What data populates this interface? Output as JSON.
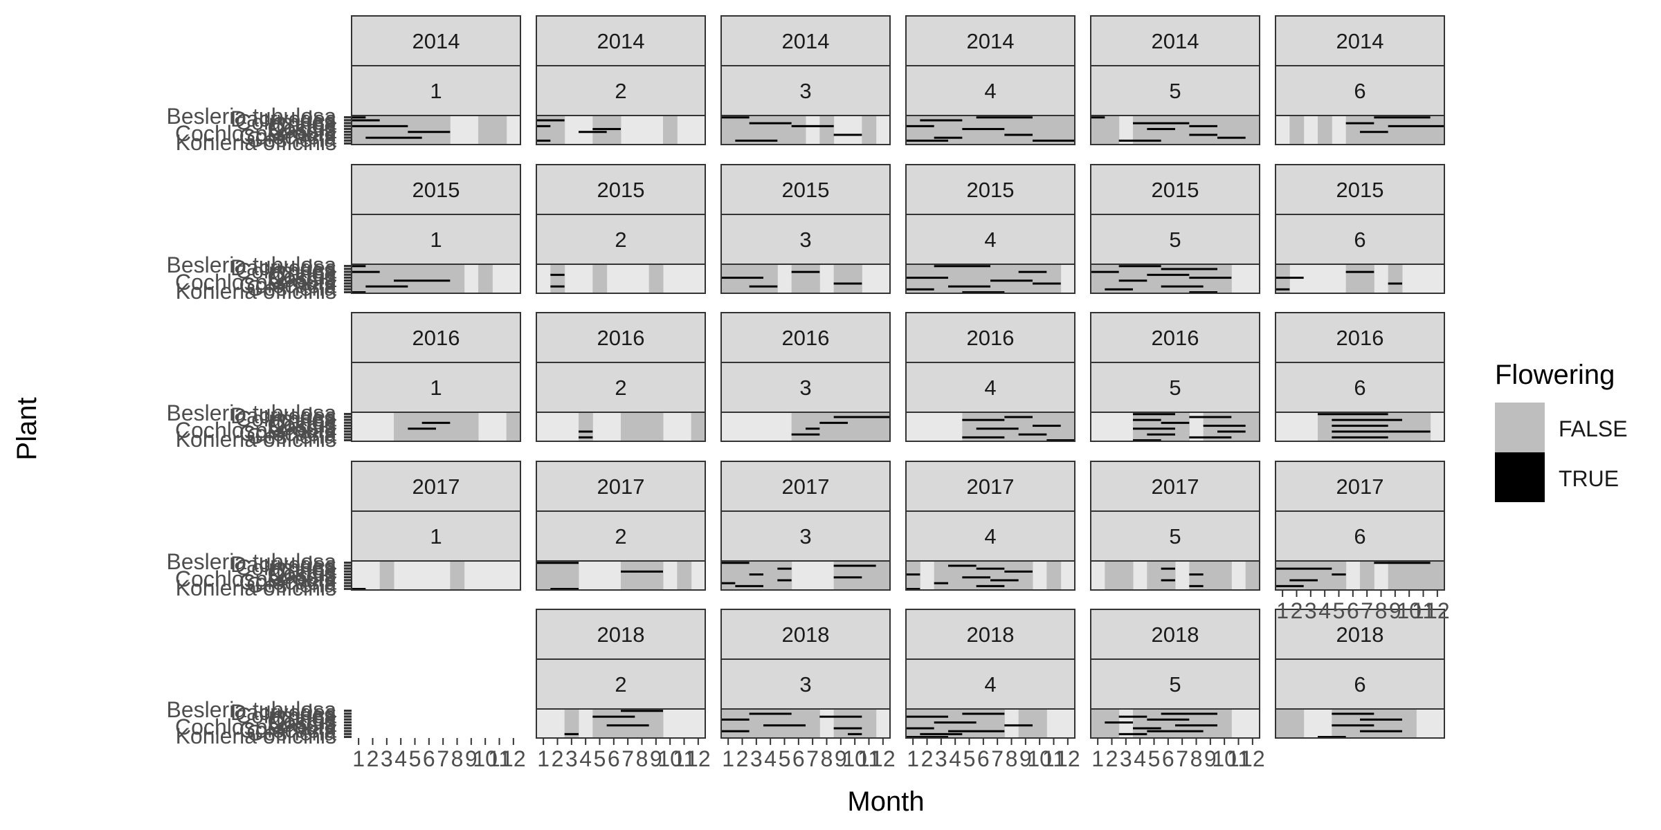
{
  "chart_data": {
    "type": "heatmap",
    "xlabel": "Month",
    "ylabel": "Plant",
    "x_tick_labels": [
      "1",
      "2",
      "3",
      "4",
      "5",
      "6",
      "7",
      "8",
      "9",
      "10",
      "11",
      "12"
    ],
    "plant_tick_labels": [
      "Kohleria officinis",
      "Gesneria",
      "Colocasia",
      "Cochlospermum",
      "Cassia",
      "Costus",
      "Coffea",
      "Columnea",
      "Dacryodes",
      "Besleria tubulosa"
    ],
    "legend": {
      "title": "Flowering",
      "placement": "right",
      "items": [
        {
          "label": "FALSE",
          "color": "#bebebe"
        },
        {
          "label": "TRUE",
          "color": "#000000"
        }
      ]
    },
    "empty_color": "#e8e8e8",
    "panels": [
      {
        "year": "2014",
        "group": "1",
        "gray_months": [
          1,
          2,
          3,
          4,
          5,
          6,
          7,
          10,
          11
        ],
        "flowering": [
          [
            0,
            1,
            1
          ],
          [
            1,
            1,
            2
          ],
          [
            3,
            1,
            4
          ],
          [
            5,
            5,
            7
          ],
          [
            7,
            2,
            5
          ]
        ]
      },
      {
        "year": "2014",
        "group": "2",
        "gray_months": [
          1,
          2,
          5,
          6,
          10
        ],
        "flowering": [
          [
            1,
            1,
            2
          ],
          [
            3,
            1,
            1
          ],
          [
            4,
            5,
            6
          ],
          [
            5,
            4,
            5
          ],
          [
            8,
            1,
            1
          ]
        ]
      },
      {
        "year": "2014",
        "group": "3",
        "gray_months": [
          1,
          2,
          3,
          4,
          5,
          6,
          8,
          11
        ],
        "flowering": [
          [
            0,
            1,
            2
          ],
          [
            2,
            3,
            5
          ],
          [
            3,
            6,
            8
          ],
          [
            6,
            9,
            10
          ],
          [
            8,
            2,
            4
          ]
        ]
      },
      {
        "year": "2014",
        "group": "4",
        "gray_months": [
          1,
          2,
          3,
          4,
          5,
          6,
          7,
          8,
          9,
          10,
          11,
          12
        ],
        "flowering": [
          [
            0,
            6,
            9
          ],
          [
            1,
            2,
            4
          ],
          [
            3,
            1,
            2
          ],
          [
            4,
            5,
            7
          ],
          [
            6,
            8,
            9
          ],
          [
            7,
            3,
            4
          ],
          [
            8,
            1,
            3
          ],
          [
            8,
            10,
            12
          ]
        ]
      },
      {
        "year": "2014",
        "group": "5",
        "gray_months": [
          1,
          2,
          4,
          5,
          6,
          7,
          8,
          9,
          10,
          11,
          12
        ],
        "flowering": [
          [
            0,
            1,
            1
          ],
          [
            2,
            4,
            7
          ],
          [
            3,
            8,
            9
          ],
          [
            4,
            5,
            6
          ],
          [
            6,
            8,
            9
          ],
          [
            7,
            10,
            11
          ],
          [
            8,
            3,
            5
          ]
        ]
      },
      {
        "year": "2014",
        "group": "6",
        "gray_months": [
          2,
          4,
          6,
          7,
          8,
          9,
          10,
          11,
          12
        ],
        "flowering": [
          [
            0,
            8,
            11
          ],
          [
            2,
            6,
            7
          ],
          [
            3,
            9,
            12
          ],
          [
            5,
            7,
            8
          ]
        ]
      },
      {
        "year": "2015",
        "group": "1",
        "gray_months": [
          1,
          2,
          3,
          4,
          5,
          6,
          7,
          8,
          10
        ],
        "flowering": [
          [
            0,
            1,
            1
          ],
          [
            2,
            1,
            2
          ],
          [
            5,
            4,
            7
          ],
          [
            7,
            2,
            4
          ],
          [
            9,
            1,
            1
          ]
        ]
      },
      {
        "year": "2015",
        "group": "2",
        "gray_months": [
          2,
          5,
          9
        ],
        "flowering": [
          [
            3,
            2,
            2
          ],
          [
            7,
            2,
            2
          ]
        ]
      },
      {
        "year": "2015",
        "group": "3",
        "gray_months": [
          1,
          2,
          3,
          4,
          6,
          7,
          9,
          10
        ],
        "flowering": [
          [
            2,
            6,
            7
          ],
          [
            4,
            1,
            3
          ],
          [
            6,
            9,
            10
          ],
          [
            7,
            3,
            4
          ]
        ]
      },
      {
        "year": "2015",
        "group": "4",
        "gray_months": [
          1,
          2,
          3,
          4,
          5,
          6,
          7,
          8,
          9,
          10,
          11
        ],
        "flowering": [
          [
            0,
            3,
            6
          ],
          [
            2,
            9,
            10
          ],
          [
            4,
            1,
            3
          ],
          [
            5,
            7,
            9
          ],
          [
            6,
            10,
            11
          ],
          [
            7,
            4,
            6
          ],
          [
            8,
            1,
            2
          ],
          [
            9,
            5,
            7
          ]
        ]
      },
      {
        "year": "2015",
        "group": "5",
        "gray_months": [
          1,
          2,
          3,
          4,
          5,
          6,
          7,
          8,
          9,
          10
        ],
        "flowering": [
          [
            0,
            3,
            5
          ],
          [
            1,
            6,
            9
          ],
          [
            2,
            1,
            2
          ],
          [
            3,
            5,
            7
          ],
          [
            4,
            8,
            10
          ],
          [
            5,
            3,
            4
          ],
          [
            7,
            6,
            8
          ],
          [
            8,
            2,
            3
          ],
          [
            9,
            8,
            9
          ]
        ]
      },
      {
        "year": "2015",
        "group": "6",
        "gray_months": [
          1,
          6,
          7,
          9
        ],
        "flowering": [
          [
            2,
            6,
            7
          ],
          [
            4,
            1,
            2
          ],
          [
            6,
            9,
            9
          ],
          [
            8,
            1,
            1
          ]
        ]
      }
    ],
    "panels_more": [
      {
        "year": "2016",
        "group": "1",
        "gray_months": [
          4,
          5,
          6,
          7,
          8,
          9,
          12
        ],
        "flowering": [
          [
            3,
            6,
            7
          ],
          [
            5,
            5,
            6
          ]
        ]
      },
      {
        "year": "2016",
        "group": "2",
        "gray_months": [
          4,
          7,
          8,
          9,
          12
        ],
        "flowering": [
          [
            6,
            4,
            4
          ],
          [
            8,
            4,
            4
          ]
        ]
      },
      {
        "year": "2016",
        "group": "3",
        "gray_months": [
          6,
          7,
          8,
          9,
          10,
          11,
          12
        ],
        "flowering": [
          [
            1,
            9,
            12
          ],
          [
            3,
            8,
            9
          ],
          [
            5,
            7,
            7
          ],
          [
            7,
            6,
            7
          ]
        ]
      },
      {
        "year": "2016",
        "group": "4",
        "gray_months": [
          5,
          6,
          7,
          8,
          9,
          10,
          11,
          12
        ],
        "flowering": [
          [
            1,
            8,
            9
          ],
          [
            2,
            5,
            7
          ],
          [
            4,
            10,
            11
          ],
          [
            5,
            6,
            8
          ],
          [
            7,
            9,
            10
          ],
          [
            8,
            5,
            7
          ],
          [
            9,
            11,
            12
          ]
        ]
      },
      {
        "year": "2016",
        "group": "5",
        "gray_months": [
          4,
          5,
          6,
          7,
          9,
          10,
          11,
          12
        ],
        "flowering": [
          [
            0,
            4,
            6
          ],
          [
            1,
            8,
            10
          ],
          [
            2,
            4,
            5
          ],
          [
            3,
            6,
            7
          ],
          [
            4,
            9,
            11
          ],
          [
            5,
            4,
            6
          ],
          [
            6,
            10,
            11
          ],
          [
            7,
            5,
            6
          ],
          [
            8,
            8,
            10
          ],
          [
            9,
            4,
            5
          ]
        ]
      },
      {
        "year": "2016",
        "group": "6",
        "gray_months": [
          4,
          5,
          6,
          7,
          8,
          9,
          10,
          11
        ],
        "flowering": [
          [
            0,
            4,
            8
          ],
          [
            2,
            5,
            9
          ],
          [
            4,
            5,
            8
          ],
          [
            6,
            5,
            11
          ],
          [
            8,
            5,
            8
          ]
        ]
      },
      {
        "year": "2017",
        "group": "1",
        "gray_months": [
          3,
          8
        ],
        "flowering": [
          [
            9,
            1,
            1
          ]
        ]
      },
      {
        "year": "2017",
        "group": "2",
        "gray_months": [
          1,
          2,
          3,
          7,
          8,
          9,
          11
        ],
        "flowering": [
          [
            0,
            1,
            3
          ],
          [
            3,
            7,
            9
          ],
          [
            9,
            2,
            3
          ]
        ]
      },
      {
        "year": "2017",
        "group": "3",
        "gray_months": [
          1,
          2,
          3,
          4,
          5,
          9,
          10,
          11,
          12
        ],
        "flowering": [
          [
            0,
            1,
            2
          ],
          [
            1,
            9,
            11
          ],
          [
            2,
            5,
            5
          ],
          [
            4,
            3,
            3
          ],
          [
            5,
            9,
            10
          ],
          [
            6,
            5,
            5
          ],
          [
            7,
            1,
            1
          ],
          [
            8,
            2,
            3
          ]
        ]
      },
      {
        "year": "2017",
        "group": "4",
        "gray_months": [
          1,
          3,
          4,
          5,
          6,
          7,
          8,
          9,
          11
        ],
        "flowering": [
          [
            1,
            4,
            5
          ],
          [
            2,
            6,
            7
          ],
          [
            3,
            8,
            9
          ],
          [
            4,
            1,
            1
          ],
          [
            5,
            5,
            6
          ],
          [
            6,
            7,
            8
          ],
          [
            7,
            3,
            3
          ],
          [
            8,
            6,
            7
          ],
          [
            9,
            1,
            1
          ]
        ]
      },
      {
        "year": "2017",
        "group": "5",
        "gray_months": [
          2,
          3,
          5,
          6,
          8,
          9,
          10,
          12
        ],
        "flowering": [
          [
            2,
            6,
            6
          ],
          [
            4,
            8,
            8
          ],
          [
            6,
            6,
            6
          ],
          [
            8,
            8,
            8
          ]
        ]
      },
      {
        "year": "2017",
        "group": "6",
        "gray_months": [
          1,
          2,
          3,
          4,
          5,
          7,
          9,
          10,
          11,
          12
        ],
        "flowering": [
          [
            0,
            8,
            11
          ],
          [
            2,
            1,
            4
          ],
          [
            4,
            5,
            5
          ],
          [
            6,
            2,
            3
          ],
          [
            8,
            1,
            2
          ]
        ]
      },
      {
        "year": "2018",
        "group": "2",
        "gray_months": [
          3,
          5,
          6,
          7,
          8,
          9
        ],
        "flowering": [
          [
            0,
            7,
            9
          ],
          [
            2,
            5,
            7
          ],
          [
            5,
            6,
            8
          ],
          [
            8,
            3,
            3
          ]
        ]
      },
      {
        "year": "2018",
        "group": "3",
        "gray_months": [
          1,
          2,
          3,
          4,
          5,
          6,
          7,
          9,
          10,
          11
        ],
        "flowering": [
          [
            1,
            3,
            5
          ],
          [
            2,
            8,
            10
          ],
          [
            3,
            1,
            2
          ],
          [
            5,
            4,
            6
          ],
          [
            6,
            9,
            10
          ],
          [
            7,
            1,
            2
          ],
          [
            8,
            10,
            10
          ]
        ]
      },
      {
        "year": "2018",
        "group": "4",
        "gray_months": [
          1,
          2,
          3,
          4,
          5,
          6,
          7,
          9,
          10
        ],
        "flowering": [
          [
            1,
            5,
            7
          ],
          [
            2,
            1,
            3
          ],
          [
            4,
            3,
            5
          ],
          [
            5,
            8,
            9
          ],
          [
            6,
            1,
            2
          ],
          [
            7,
            4,
            7
          ],
          [
            8,
            2,
            4
          ],
          [
            9,
            1,
            3
          ]
        ]
      },
      {
        "year": "2018",
        "group": "5",
        "gray_months": [
          1,
          2,
          4,
          5,
          6,
          7,
          8,
          9,
          10
        ],
        "flowering": [
          [
            1,
            6,
            9
          ],
          [
            2,
            3,
            4
          ],
          [
            3,
            5,
            7
          ],
          [
            4,
            2,
            3
          ],
          [
            5,
            7,
            9
          ],
          [
            6,
            4,
            5
          ],
          [
            7,
            5,
            8
          ],
          [
            8,
            3,
            4
          ]
        ]
      },
      {
        "year": "2018",
        "group": "6",
        "gray_months": [
          1,
          2,
          5,
          6,
          7,
          8,
          9,
          10
        ],
        "flowering": [
          [
            1,
            5,
            7
          ],
          [
            3,
            7,
            9
          ],
          [
            5,
            5,
            7
          ],
          [
            7,
            7,
            9
          ],
          [
            9,
            4,
            5
          ]
        ]
      }
    ]
  }
}
